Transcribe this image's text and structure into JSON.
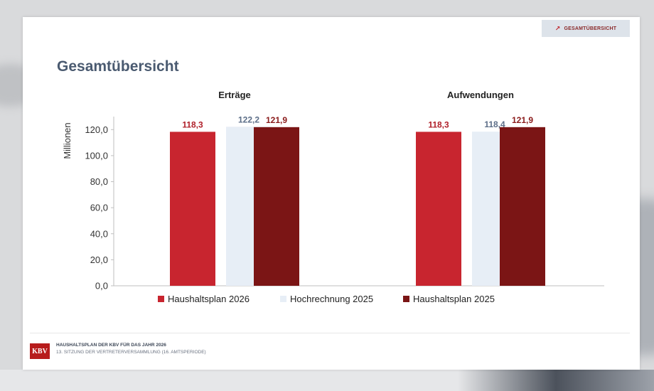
{
  "nav": {
    "button_label": "GESAMTÜBERSICHT",
    "icon": "arrow-up-right-icon"
  },
  "page": {
    "title": "Gesamtübersicht"
  },
  "chart_data": {
    "type": "bar",
    "groups": [
      "Erträge",
      "Aufwendungen"
    ],
    "series": [
      {
        "name": "Haushaltsplan 2026",
        "values": [
          118.3,
          118.3
        ],
        "labels": [
          "118,3",
          "118,3"
        ],
        "color": "#c8252f",
        "label_color": "#b0202a"
      },
      {
        "name": "Hochrechnung 2025",
        "values": [
          122.2,
          118.4
        ],
        "labels": [
          "122,2",
          "118,4"
        ],
        "color": "#e7eef6",
        "label_color": "#5c6e88"
      },
      {
        "name": "Haushaltsplan 2025",
        "values": [
          121.9,
          121.9
        ],
        "labels": [
          "121,9",
          "121,9"
        ],
        "color": "#7b1515",
        "label_color": "#8a1a1a"
      }
    ],
    "ylabel": "Millionen",
    "ylim": [
      0,
      130
    ],
    "yticks": [
      0,
      20,
      40,
      60,
      80,
      100,
      120
    ],
    "ytick_labels": [
      "0,0",
      "20,0",
      "40,0",
      "60,0",
      "80,0",
      "100,0",
      "120,0"
    ],
    "legend_position": "bottom",
    "grid": false
  },
  "footer": {
    "logo_text": "KBV",
    "line1": "HAUSHALTSPLAN DER KBV FÜR DAS JAHR 2026",
    "line2": "13. SITZUNG DER VERTRETERVERSAMMLUNG (16. AMTSPERIODE)"
  }
}
